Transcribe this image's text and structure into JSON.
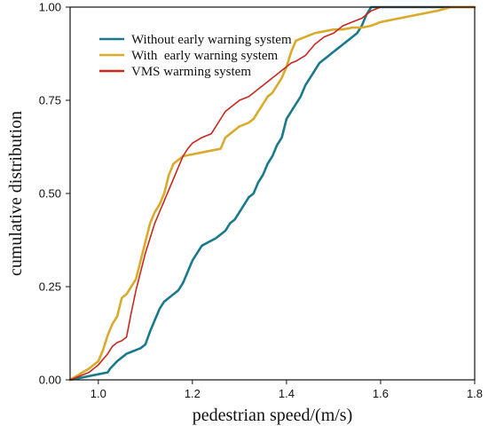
{
  "chart_data": {
    "type": "line",
    "title": "",
    "xlabel": "pedestrian speed/(m/s)",
    "ylabel": "cumulative distribution",
    "xlim": [
      0.94,
      1.8
    ],
    "ylim": [
      0.0,
      1.0
    ],
    "xticks": [
      1.0,
      1.2,
      1.4,
      1.6,
      1.8
    ],
    "xtick_labels": [
      "1.0",
      "1.2",
      "1.4",
      "1.6",
      "1.8"
    ],
    "yticks": [
      0.0,
      0.25,
      0.5,
      0.75,
      1.0
    ],
    "ytick_labels": [
      "0.00",
      "0.25",
      "0.50",
      "0.75",
      "1.00"
    ],
    "grid": false,
    "legend": {
      "placement": "top-left"
    },
    "series": [
      {
        "name": "Without early warning system",
        "color": "#1a7a8c",
        "x": [
          0.94,
          0.98,
          1.0,
          1.02,
          1.025,
          1.04,
          1.05,
          1.06,
          1.07,
          1.09,
          1.1,
          1.11,
          1.12,
          1.13,
          1.14,
          1.15,
          1.16,
          1.17,
          1.18,
          1.19,
          1.2,
          1.21,
          1.22,
          1.25,
          1.27,
          1.28,
          1.29,
          1.3,
          1.31,
          1.32,
          1.33,
          1.34,
          1.35,
          1.36,
          1.37,
          1.38,
          1.39,
          1.4,
          1.41,
          1.42,
          1.43,
          1.44,
          1.45,
          1.46,
          1.47,
          1.48,
          1.49,
          1.5,
          1.51,
          1.52,
          1.53,
          1.54,
          1.55,
          1.56,
          1.57,
          1.58,
          1.6,
          1.7,
          1.8
        ],
        "y": [
          0.0,
          0.01,
          0.015,
          0.02,
          0.03,
          0.05,
          0.06,
          0.07,
          0.075,
          0.085,
          0.095,
          0.13,
          0.16,
          0.19,
          0.21,
          0.22,
          0.23,
          0.24,
          0.26,
          0.29,
          0.32,
          0.34,
          0.36,
          0.38,
          0.4,
          0.42,
          0.43,
          0.45,
          0.47,
          0.49,
          0.5,
          0.53,
          0.55,
          0.58,
          0.6,
          0.63,
          0.65,
          0.7,
          0.72,
          0.74,
          0.76,
          0.79,
          0.81,
          0.83,
          0.85,
          0.86,
          0.87,
          0.88,
          0.89,
          0.9,
          0.91,
          0.92,
          0.93,
          0.95,
          0.98,
          1.0,
          1.0,
          1.0,
          1.0
        ]
      },
      {
        "name": "With  early warning system",
        "color": "#d9aa2b",
        "x": [
          0.94,
          0.98,
          1.0,
          1.01,
          1.02,
          1.03,
          1.04,
          1.05,
          1.06,
          1.07,
          1.08,
          1.09,
          1.1,
          1.11,
          1.12,
          1.13,
          1.14,
          1.15,
          1.16,
          1.17,
          1.18,
          1.2,
          1.22,
          1.24,
          1.26,
          1.27,
          1.28,
          1.3,
          1.32,
          1.33,
          1.34,
          1.35,
          1.36,
          1.37,
          1.38,
          1.39,
          1.4,
          1.41,
          1.42,
          1.44,
          1.46,
          1.48,
          1.5,
          1.52,
          1.54,
          1.56,
          1.58,
          1.6,
          1.64,
          1.68,
          1.72,
          1.75,
          1.8
        ],
        "y": [
          0.0,
          0.03,
          0.05,
          0.08,
          0.12,
          0.15,
          0.17,
          0.22,
          0.23,
          0.25,
          0.27,
          0.32,
          0.37,
          0.42,
          0.45,
          0.47,
          0.5,
          0.55,
          0.58,
          0.59,
          0.6,
          0.605,
          0.61,
          0.615,
          0.62,
          0.65,
          0.66,
          0.68,
          0.69,
          0.7,
          0.72,
          0.74,
          0.76,
          0.77,
          0.79,
          0.81,
          0.84,
          0.88,
          0.91,
          0.92,
          0.93,
          0.935,
          0.94,
          0.94,
          0.945,
          0.945,
          0.95,
          0.96,
          0.97,
          0.98,
          0.99,
          1.0,
          1.0
        ]
      },
      {
        "name": "VMS warming system",
        "color": "#c8281e",
        "x": [
          0.94,
          0.98,
          1.0,
          1.02,
          1.03,
          1.04,
          1.05,
          1.06,
          1.07,
          1.08,
          1.09,
          1.1,
          1.11,
          1.12,
          1.13,
          1.14,
          1.15,
          1.16,
          1.17,
          1.18,
          1.19,
          1.2,
          1.22,
          1.24,
          1.26,
          1.27,
          1.28,
          1.3,
          1.32,
          1.34,
          1.35,
          1.36,
          1.37,
          1.38,
          1.39,
          1.4,
          1.41,
          1.42,
          1.44,
          1.46,
          1.48,
          1.5,
          1.52,
          1.54,
          1.56,
          1.58,
          1.6,
          1.7,
          1.8
        ],
        "y": [
          0.0,
          0.02,
          0.04,
          0.07,
          0.09,
          0.1,
          0.105,
          0.115,
          0.18,
          0.24,
          0.29,
          0.34,
          0.38,
          0.42,
          0.45,
          0.48,
          0.51,
          0.54,
          0.57,
          0.6,
          0.62,
          0.635,
          0.65,
          0.66,
          0.7,
          0.72,
          0.73,
          0.75,
          0.76,
          0.78,
          0.79,
          0.8,
          0.81,
          0.82,
          0.83,
          0.84,
          0.85,
          0.855,
          0.87,
          0.9,
          0.92,
          0.93,
          0.95,
          0.96,
          0.97,
          0.99,
          1.0,
          1.0,
          1.0
        ]
      }
    ]
  }
}
